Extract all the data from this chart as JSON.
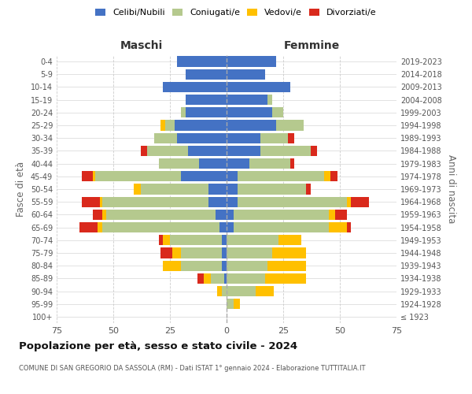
{
  "age_groups": [
    "100+",
    "95-99",
    "90-94",
    "85-89",
    "80-84",
    "75-79",
    "70-74",
    "65-69",
    "60-64",
    "55-59",
    "50-54",
    "45-49",
    "40-44",
    "35-39",
    "30-34",
    "25-29",
    "20-24",
    "15-19",
    "10-14",
    "5-9",
    "0-4"
  ],
  "birth_years": [
    "≤ 1923",
    "1924-1928",
    "1929-1933",
    "1934-1938",
    "1939-1943",
    "1944-1948",
    "1949-1953",
    "1954-1958",
    "1959-1963",
    "1964-1968",
    "1969-1973",
    "1974-1978",
    "1979-1983",
    "1984-1988",
    "1989-1993",
    "1994-1998",
    "1999-2003",
    "2004-2008",
    "2009-2013",
    "2014-2018",
    "2019-2023"
  ],
  "maschi": {
    "celibi": [
      0,
      0,
      0,
      1,
      2,
      2,
      2,
      3,
      5,
      8,
      8,
      20,
      12,
      17,
      22,
      23,
      18,
      18,
      28,
      18,
      22
    ],
    "coniugati": [
      0,
      0,
      2,
      6,
      18,
      18,
      23,
      52,
      48,
      47,
      30,
      38,
      18,
      18,
      10,
      4,
      2,
      0,
      0,
      0,
      0
    ],
    "vedovi": [
      0,
      0,
      2,
      3,
      8,
      4,
      3,
      2,
      2,
      1,
      3,
      1,
      0,
      0,
      0,
      2,
      0,
      0,
      0,
      0,
      0
    ],
    "divorziati": [
      0,
      0,
      0,
      3,
      0,
      5,
      2,
      8,
      4,
      8,
      0,
      5,
      0,
      3,
      0,
      0,
      0,
      0,
      0,
      0,
      0
    ]
  },
  "femmine": {
    "nubili": [
      0,
      0,
      0,
      0,
      0,
      0,
      0,
      3,
      3,
      5,
      5,
      5,
      10,
      15,
      15,
      22,
      20,
      18,
      28,
      17,
      22
    ],
    "coniugate": [
      0,
      3,
      13,
      17,
      18,
      20,
      23,
      42,
      42,
      48,
      30,
      38,
      18,
      22,
      12,
      12,
      5,
      2,
      0,
      0,
      0
    ],
    "vedove": [
      0,
      3,
      8,
      18,
      17,
      15,
      10,
      8,
      3,
      2,
      0,
      3,
      0,
      0,
      0,
      0,
      0,
      0,
      0,
      0,
      0
    ],
    "divorziate": [
      0,
      0,
      0,
      0,
      0,
      0,
      0,
      2,
      5,
      8,
      2,
      3,
      2,
      3,
      3,
      0,
      0,
      0,
      0,
      0,
      0
    ]
  },
  "colors": {
    "celibi": "#4472c4",
    "coniugati": "#b5c98e",
    "vedovi": "#ffc000",
    "divorziati": "#d9291c"
  },
  "xlim": 75,
  "title": "Popolazione per età, sesso e stato civile - 2024",
  "subtitle": "COMUNE DI SAN GREGORIO DA SASSOLA (RM) - Dati ISTAT 1° gennaio 2024 - Elaborazione TUTTITALIA.IT",
  "ylabel_left": "Fasce di età",
  "ylabel_right": "Anni di nascita",
  "xlabel_left": "Maschi",
  "xlabel_right": "Femmine"
}
